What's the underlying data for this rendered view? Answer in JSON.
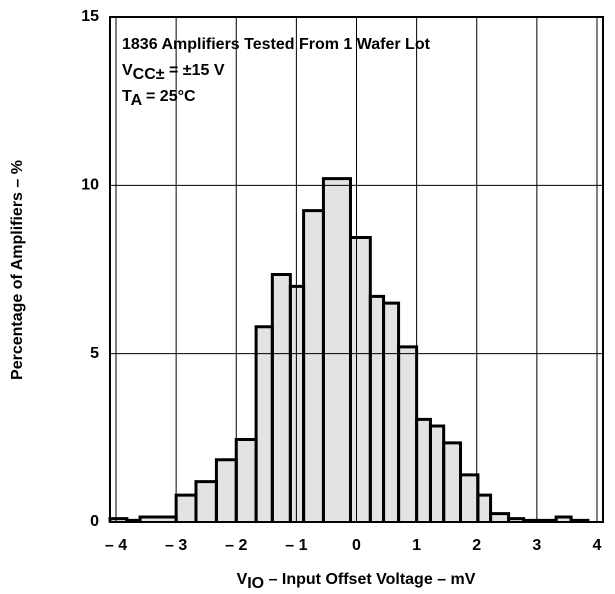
{
  "chart_data": {
    "type": "histogram",
    "annotations": [
      [
        {
          "text": "1836 Amplifiers Tested From 1 Wafer Lot"
        }
      ],
      [
        {
          "text": "V"
        },
        {
          "text": "CC±",
          "sub": true
        },
        {
          "text": " = ±15 V"
        }
      ],
      [
        {
          "text": "T"
        },
        {
          "text": "A",
          "sub": true
        },
        {
          "text": " = 25°C"
        }
      ]
    ],
    "xlabel": [
      {
        "text": "V"
      },
      {
        "text": "IO",
        "sub": true
      },
      {
        "text": " – Input Offset Voltage – mV"
      }
    ],
    "ylabel": "Percentage of Amplifiers – %",
    "bins": [
      -4.1,
      -3.82,
      -3.6,
      -3,
      -2.67,
      -2.33,
      -2,
      -1.67,
      -1.4,
      -1.1,
      -0.88,
      -0.55,
      -0.1,
      0.23,
      0.45,
      0.7,
      1.0,
      1.23,
      1.45,
      1.73,
      2.02,
      2.23,
      2.53,
      2.78,
      3.32,
      3.57,
      3.85
    ],
    "values": [
      0.1,
      0.05,
      0.15,
      0.8,
      1.2,
      1.85,
      2.45,
      5.8,
      7.35,
      7.0,
      9.25,
      10.2,
      8.45,
      6.7,
      6.5,
      5.2,
      3.05,
      2.85,
      2.35,
      1.4,
      0.8,
      0.25,
      0.1,
      0.05,
      0.15,
      0.05
    ],
    "color": "#e3e3e3",
    "edgecolor": "#000000",
    "xlim": [
      -4.1,
      4.1
    ],
    "ylim": [
      0,
      15
    ],
    "xticks": [
      {
        "value": -4,
        "label": "– 4"
      },
      {
        "value": -3,
        "label": "– 3"
      },
      {
        "value": -2,
        "label": "– 2"
      },
      {
        "value": -1,
        "label": "– 1"
      },
      0,
      1,
      2,
      3,
      4
    ],
    "yticks": [
      0,
      5,
      10,
      15
    ],
    "grid": true
  }
}
